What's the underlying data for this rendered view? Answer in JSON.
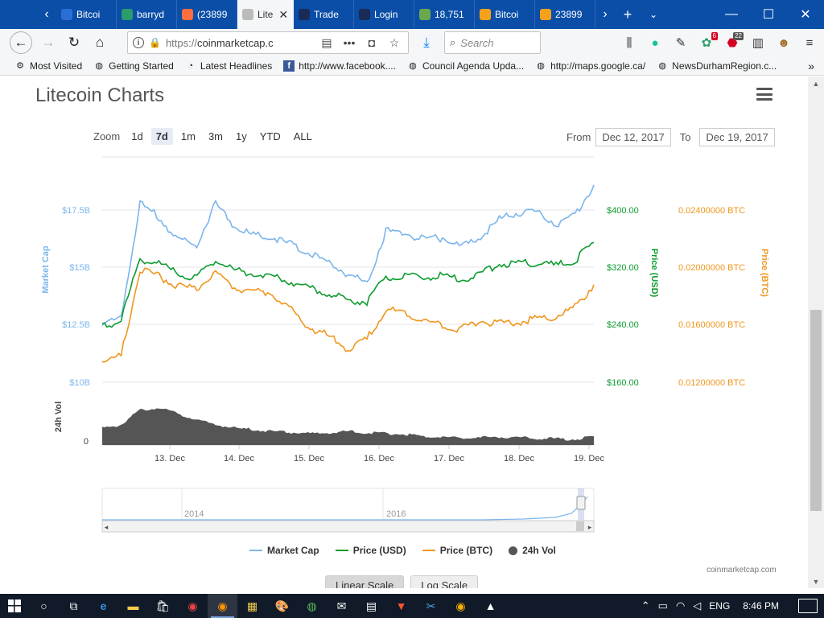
{
  "browser": {
    "tabs": [
      {
        "label": "Bitcoi",
        "icon": "bitcoin-site-icon",
        "color": "#2a6fd6"
      },
      {
        "label": "barryd",
        "icon": "shield-green-icon",
        "color": "#2a9d6a"
      },
      {
        "label": "(23899",
        "icon": "reddit-icon",
        "color": "#ff6e40"
      },
      {
        "label": "Lite",
        "icon": "litecoin-icon",
        "color": "#bbbbbb",
        "active": true
      },
      {
        "label": "Trade",
        "icon": "exchange-icon",
        "color": "#1a2b58"
      },
      {
        "label": "Login",
        "icon": "lock-icon",
        "color": "#1a2b58"
      },
      {
        "label": "18,751",
        "icon": "leaf-icon",
        "color": "#6aa84f"
      },
      {
        "label": "Bitcoi",
        "icon": "chart-orange-icon",
        "color": "#f6a11a"
      },
      {
        "label": "23899",
        "icon": "chart-orange-icon",
        "color": "#f6a11a"
      }
    ],
    "url_scheme": "https://",
    "url_host": "coinmarketcap.c",
    "search_placeholder": "Search",
    "badges": {
      "ext1": "6",
      "ext2": "22"
    },
    "bookmarks": [
      {
        "label": "Most Visited",
        "icon": "gear-icon"
      },
      {
        "label": "Getting Started",
        "icon": "globe-icon"
      },
      {
        "label": "Latest Headlines",
        "icon": "rss-icon"
      },
      {
        "label": "http://www.facebook....",
        "icon": "facebook-icon"
      },
      {
        "label": "Council Agenda Upda...",
        "icon": "globe-icon"
      },
      {
        "label": "http://maps.google.ca/",
        "icon": "globe-icon"
      },
      {
        "label": "NewsDurhamRegion.c...",
        "icon": "globe-icon"
      }
    ]
  },
  "page": {
    "title": "Litecoin Charts",
    "zoom_label": "Zoom",
    "zoom_options": [
      "1d",
      "7d",
      "1m",
      "3m",
      "1y",
      "YTD",
      "ALL"
    ],
    "zoom_active": "7d",
    "from_label": "From",
    "from_value": "Dec 12, 2017",
    "to_label": "To",
    "to_value": "Dec 19, 2017",
    "legend": {
      "market_cap": "Market Cap",
      "price_usd": "Price (USD)",
      "price_btc": "Price (BTC)",
      "vol": "24h Vol"
    },
    "credit": "coinmarketcap.com",
    "scale_buttons": [
      "Linear Scale",
      "Log Scale"
    ]
  },
  "chart_data": {
    "type": "line",
    "x_ticks": [
      "13. Dec",
      "14. Dec",
      "15. Dec",
      "16. Dec",
      "17. Dec",
      "18. Dec",
      "19. Dec"
    ],
    "y_left": {
      "label": "Market Cap",
      "ticks": [
        "$17.5B",
        "$15B",
        "$12.5B",
        "$10B"
      ],
      "color": "#7cb5ec"
    },
    "y_right_usd": {
      "label": "Price (USD)",
      "ticks": [
        "$400.00",
        "$320.00",
        "$240.00",
        "$160.00"
      ],
      "color": "#0d9c2f"
    },
    "y_right_btc": {
      "label": "Price (BTC)",
      "ticks": [
        "0.02400000 BTC",
        "0.02000000 BTC",
        "0.01600000 BTC",
        "0.01200000 BTC"
      ],
      "color": "#f0961e"
    },
    "vol_axis": {
      "label": "24h Vol",
      "ticks": [
        "0"
      ]
    },
    "navigator_ticks": [
      "2014",
      "2016"
    ],
    "series": [
      {
        "name": "Market Cap",
        "color": "#7cb5ec",
        "values": [
          12.5,
          12.8,
          17.8,
          17.2,
          16.2,
          16.0,
          17.8,
          16.8,
          16.4,
          16.3,
          16.0,
          15.6,
          15.2,
          14.7,
          14.3,
          16.6,
          16.5,
          16.2,
          16.3,
          15.9,
          16.3,
          17.1,
          17.4,
          17.4,
          16.9,
          17.3,
          18.6
        ]
      },
      {
        "name": "Price (USD)",
        "color": "#0d9c2f",
        "values": [
          236,
          248,
          332,
          326,
          310,
          306,
          332,
          316,
          312,
          308,
          300,
          292,
          282,
          275,
          272,
          306,
          307,
          306,
          308,
          303,
          312,
          325,
          326,
          327,
          322,
          330,
          355
        ]
      },
      {
        "name": "Price (BTC)",
        "color": "#f0961e",
        "values": [
          0.0135,
          0.0138,
          0.0198,
          0.0194,
          0.0187,
          0.0185,
          0.0196,
          0.0186,
          0.0184,
          0.0182,
          0.017,
          0.0158,
          0.0152,
          0.0143,
          0.015,
          0.017,
          0.0169,
          0.0163,
          0.016,
          0.0157,
          0.0163,
          0.0161,
          0.0162,
          0.0164,
          0.0166,
          0.0172,
          0.0188
        ]
      },
      {
        "name": "24h Vol",
        "color": "#555555",
        "values": [
          0.35,
          0.42,
          0.72,
          0.78,
          0.65,
          0.52,
          0.42,
          0.35,
          0.32,
          0.28,
          0.26,
          0.24,
          0.25,
          0.28,
          0.26,
          0.24,
          0.22,
          0.18,
          0.16,
          0.15,
          0.15,
          0.17,
          0.16,
          0.14,
          0.13,
          0.12,
          0.18
        ]
      }
    ]
  },
  "taskbar": {
    "lang": "ENG",
    "time": "8:46 PM"
  }
}
